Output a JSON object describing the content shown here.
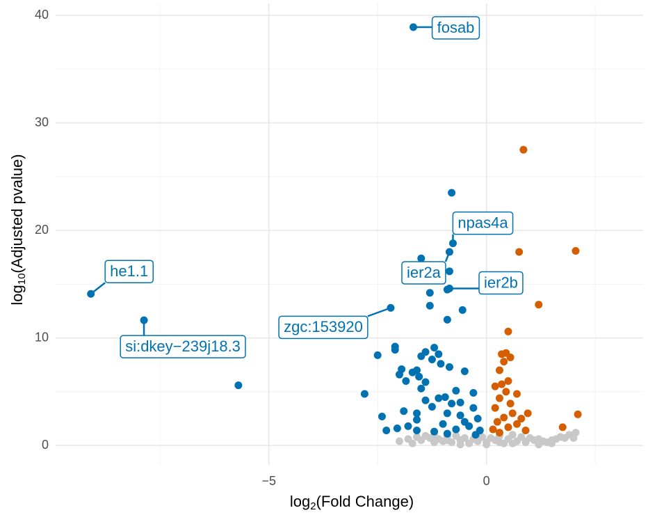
{
  "chart_data": {
    "type": "scatter",
    "x_label": {
      "base": "log",
      "sub": "2",
      "rest": "(Fold Change)"
    },
    "y_label": {
      "base": "log",
      "sub": "10",
      "rest": "(Adjusted pvalue)"
    },
    "xlim": [
      -9.9,
      3.6
    ],
    "ylim": [
      -1.8,
      41.1
    ],
    "xticks": [
      {
        "value": -5,
        "label": "−5"
      },
      0
    ],
    "x_minor_grid": [
      -7.5,
      -2.5,
      2.5
    ],
    "yticks": [
      0,
      10,
      20,
      30,
      40
    ],
    "y_minor_grid": [
      5,
      15,
      25,
      35
    ],
    "grid": true,
    "series": [
      {
        "color": "#c8c8c8",
        "x": [
          -2.0,
          -1.8,
          -1.6,
          -1.5,
          -1.4,
          -1.3,
          -1.2,
          -1.1,
          -1.0,
          -0.9,
          -0.8,
          -0.7,
          -0.6,
          -0.5,
          -0.4,
          -0.3,
          -0.2,
          -0.1,
          0.0,
          0.1,
          0.2,
          0.3,
          0.4,
          0.5,
          0.6,
          0.7,
          0.8,
          0.9,
          1.0,
          1.1,
          1.2,
          1.3,
          1.4,
          1.5,
          1.6,
          1.7,
          1.8,
          1.9,
          2.0,
          2.05,
          -1.7,
          -1.2,
          -0.6,
          0.0,
          0.6,
          1.2,
          -0.9,
          0.3,
          0.9,
          1.5
        ],
        "values": [
          0.4,
          0.6,
          0.8,
          0.5,
          0.9,
          0.7,
          1.0,
          0.6,
          0.4,
          0.8,
          0.3,
          0.9,
          0.5,
          0.7,
          0.2,
          0.6,
          0.4,
          0.8,
          0.3,
          0.7,
          0.5,
          0.9,
          0.2,
          0.6,
          1.0,
          0.4,
          0.8,
          0.3,
          0.7,
          0.5,
          0.6,
          0.4,
          0.3,
          0.5,
          0.6,
          0.8,
          0.7,
          1.0,
          0.7,
          1.2,
          0.2,
          0.3,
          0.1,
          0.1,
          0.2,
          0.1,
          0.5,
          0.3,
          0.4,
          0.2
        ]
      },
      {
        "color": "#0072b2",
        "x": [
          -5.7,
          -2.8,
          -2.5,
          -2.4,
          -2.3,
          -2.1,
          -2.1,
          -1.95,
          -2.0,
          -1.85,
          -1.7,
          -1.6,
          -1.55,
          -1.4,
          -1.5,
          -1.6,
          -1.9,
          -1.8,
          -1.6,
          -1.5,
          -1.4,
          -1.2,
          -1.1,
          -1.25,
          -1.05,
          -0.85,
          -1.3,
          -1.3,
          -0.9,
          -0.85,
          -0.8,
          -0.55,
          -0.9,
          -0.5,
          -0.7,
          -0.95,
          -1.1,
          -1.25,
          -1.4,
          -0.9,
          -0.6,
          -0.3,
          -0.2,
          -0.4,
          -0.7,
          -1.0,
          -1.2,
          -0.15,
          -0.3,
          -0.6,
          -0.8,
          -1.6,
          -2.05,
          -0.5,
          -0.25,
          -0.9,
          -1.68,
          -9.09,
          -7.87,
          -2.2,
          -0.77,
          -0.85,
          -0.85,
          -1.5
        ],
        "values": [
          5.6,
          4.8,
          8.4,
          2.7,
          1.4,
          9.2,
          8.9,
          7.1,
          6.6,
          6.0,
          6.8,
          7.0,
          6.4,
          5.9,
          5.3,
          2.4,
          3.2,
          1.8,
          1.4,
          8.3,
          8.7,
          9.1,
          8.5,
          8.0,
          7.6,
          7.3,
          14.2,
          13.0,
          14.5,
          16.2,
          23.5,
          12.6,
          11.7,
          6.9,
          5.1,
          4.5,
          4.4,
          3.6,
          4.2,
          3.0,
          2.8,
          3.5,
          2.5,
          1.8,
          1.5,
          2.0,
          1.3,
          1.4,
          4.9,
          4.0,
          3.9,
          3.0,
          1.6,
          2.2,
          1.0,
          1.1,
          38.9,
          14.1,
          11.65,
          12.8,
          18.8,
          18.0,
          14.6,
          17.4
        ]
      },
      {
        "color": "#d55e00",
        "x": [
          0.85,
          2.05,
          0.75,
          1.2,
          0.5,
          0.35,
          0.45,
          0.55,
          0.4,
          0.3,
          0.35,
          0.5,
          0.2,
          0.45,
          0.7,
          0.3,
          0.55,
          0.2,
          0.6,
          0.4,
          0.25,
          0.7,
          0.5,
          0.9,
          0.15,
          0.95,
          0.3,
          2.1,
          1.75,
          0.8
        ],
        "values": [
          27.5,
          18.1,
          18.0,
          13.1,
          10.6,
          8.5,
          8.6,
          8.2,
          7.8,
          7.0,
          5.7,
          6.0,
          5.5,
          5.0,
          4.8,
          4.4,
          3.9,
          3.5,
          3.0,
          2.6,
          2.2,
          2.0,
          1.7,
          1.4,
          1.5,
          3.0,
          1.2,
          2.9,
          1.7,
          2.5
        ]
      }
    ],
    "annotations": [
      {
        "text": "fosab",
        "x": -1.68,
        "y": 38.9
      },
      {
        "text": "npas4a",
        "x": -0.77,
        "y": 18.8
      },
      {
        "text": "ier2a",
        "x": -0.85,
        "y": 18.0
      },
      {
        "text": "ier2b",
        "x": -0.85,
        "y": 14.6
      },
      {
        "text": "he1.1",
        "x": -9.09,
        "y": 14.1
      },
      {
        "text": "zgc:153920",
        "x": -2.2,
        "y": 12.8
      },
      {
        "text": "si:dkey−239j18.3",
        "x": -7.87,
        "y": 11.65
      }
    ],
    "annotation_color": "#0072b2"
  }
}
